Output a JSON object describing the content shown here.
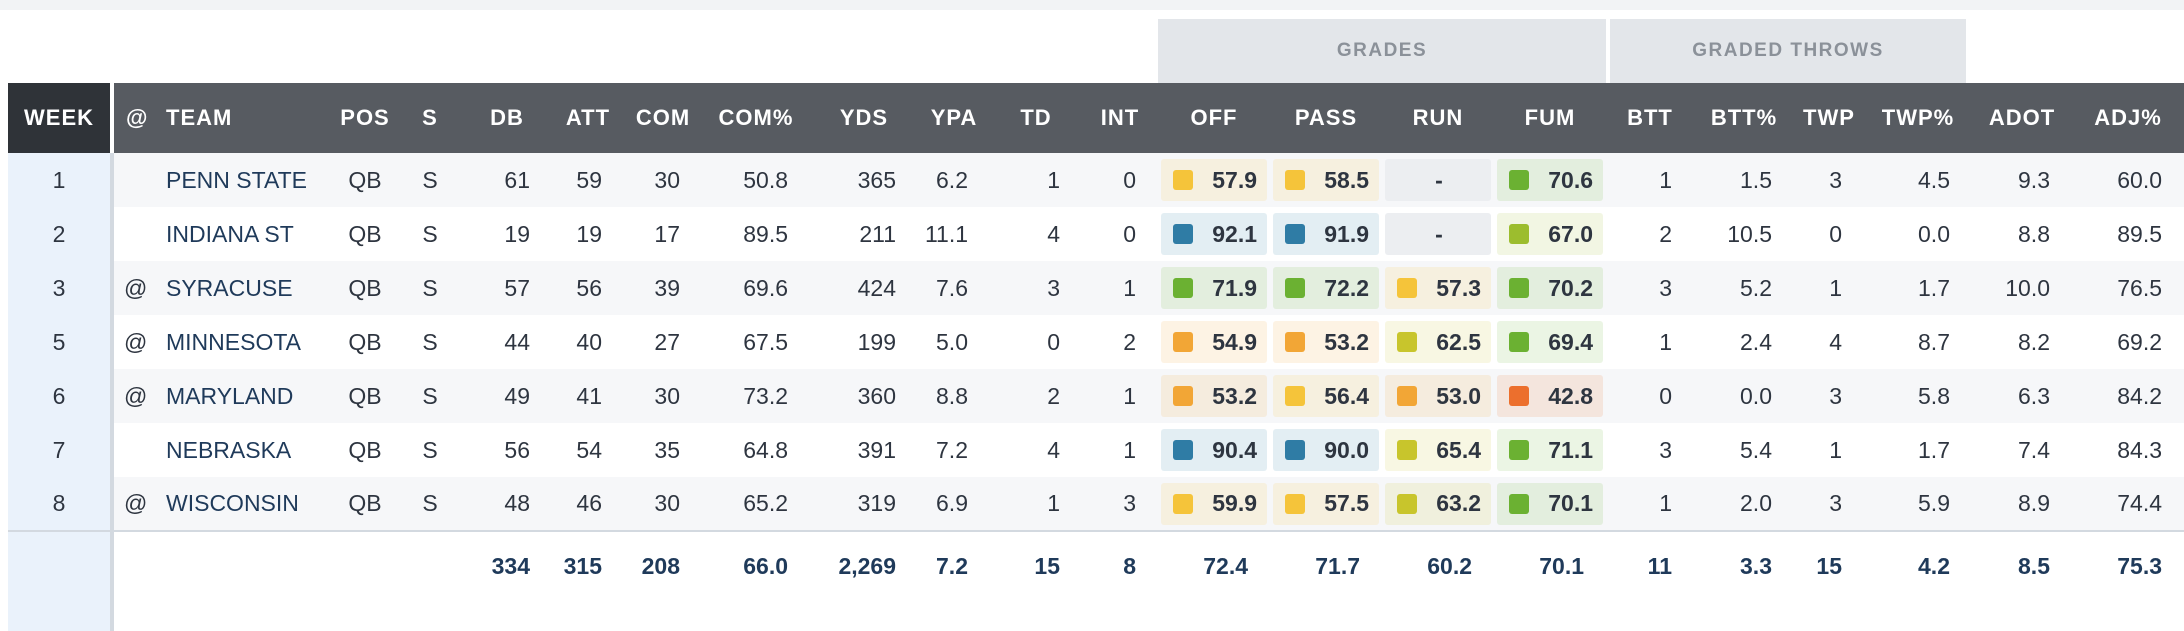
{
  "group_headers": {
    "grades": "GRADES",
    "graded_throws": "GRADED THROWS"
  },
  "columns": [
    "WEEK",
    "@",
    "TEAM",
    "POS",
    "S",
    "DB",
    "ATT",
    "COM",
    "COM%",
    "YDS",
    "YPA",
    "TD",
    "INT",
    "OFF",
    "PASS",
    "RUN",
    "FUM",
    "BTT",
    "BTT%",
    "TWP",
    "TWP%",
    "ADOT",
    "ADJ%"
  ],
  "grade_colors": {
    "blue": "#2f7ca5",
    "green": "#6bb132",
    "lime": "#9cbd2e",
    "olive": "#c8c52c",
    "yellow": "#f5c43a",
    "orange": "#f2a636",
    "red": "#ec6f2d"
  },
  "rows": [
    {
      "week": "1",
      "at": "",
      "team": "PENN STATE",
      "pos": "QB",
      "s": "S",
      "db": "61",
      "att": "59",
      "com": "30",
      "com_pct": "50.8",
      "yds": "365",
      "ypa": "6.2",
      "td": "1",
      "int": "0",
      "grades": [
        {
          "v": "57.9",
          "c": "#f5c43a"
        },
        {
          "v": "58.5",
          "c": "#f5c43a"
        },
        {
          "v": "-",
          "c": ""
        },
        {
          "v": "70.6",
          "c": "#6bb132"
        }
      ],
      "btt": "1",
      "btt_pct": "1.5",
      "twp": "3",
      "twp_pct": "4.5",
      "adot": "9.3",
      "adj_pct": "60.0"
    },
    {
      "week": "2",
      "at": "",
      "team": "INDIANA ST",
      "pos": "QB",
      "s": "S",
      "db": "19",
      "att": "19",
      "com": "17",
      "com_pct": "89.5",
      "yds": "211",
      "ypa": "11.1",
      "td": "4",
      "int": "0",
      "grades": [
        {
          "v": "92.1",
          "c": "#2f7ca5"
        },
        {
          "v": "91.9",
          "c": "#2f7ca5"
        },
        {
          "v": "-",
          "c": ""
        },
        {
          "v": "67.0",
          "c": "#9cbd2e"
        }
      ],
      "btt": "2",
      "btt_pct": "10.5",
      "twp": "0",
      "twp_pct": "0.0",
      "adot": "8.8",
      "adj_pct": "89.5"
    },
    {
      "week": "3",
      "at": "@",
      "team": "SYRACUSE",
      "pos": "QB",
      "s": "S",
      "db": "57",
      "att": "56",
      "com": "39",
      "com_pct": "69.6",
      "yds": "424",
      "ypa": "7.6",
      "td": "3",
      "int": "1",
      "grades": [
        {
          "v": "71.9",
          "c": "#6bb132"
        },
        {
          "v": "72.2",
          "c": "#6bb132"
        },
        {
          "v": "57.3",
          "c": "#f5c43a"
        },
        {
          "v": "70.2",
          "c": "#6bb132"
        }
      ],
      "btt": "3",
      "btt_pct": "5.2",
      "twp": "1",
      "twp_pct": "1.7",
      "adot": "10.0",
      "adj_pct": "76.5"
    },
    {
      "week": "5",
      "at": "@",
      "team": "MINNESOTA",
      "pos": "QB",
      "s": "S",
      "db": "44",
      "att": "40",
      "com": "27",
      "com_pct": "67.5",
      "yds": "199",
      "ypa": "5.0",
      "td": "0",
      "int": "2",
      "grades": [
        {
          "v": "54.9",
          "c": "#f2a636"
        },
        {
          "v": "53.2",
          "c": "#f2a636"
        },
        {
          "v": "62.5",
          "c": "#c8c52c"
        },
        {
          "v": "69.4",
          "c": "#6bb132"
        }
      ],
      "btt": "1",
      "btt_pct": "2.4",
      "twp": "4",
      "twp_pct": "8.7",
      "adot": "8.2",
      "adj_pct": "69.2"
    },
    {
      "week": "6",
      "at": "@",
      "team": "MARYLAND",
      "pos": "QB",
      "s": "S",
      "db": "49",
      "att": "41",
      "com": "30",
      "com_pct": "73.2",
      "yds": "360",
      "ypa": "8.8",
      "td": "2",
      "int": "1",
      "grades": [
        {
          "v": "53.2",
          "c": "#f2a636"
        },
        {
          "v": "56.4",
          "c": "#f5c43a"
        },
        {
          "v": "53.0",
          "c": "#f2a636"
        },
        {
          "v": "42.8",
          "c": "#ec6f2d"
        }
      ],
      "btt": "0",
      "btt_pct": "0.0",
      "twp": "3",
      "twp_pct": "5.8",
      "adot": "6.3",
      "adj_pct": "84.2"
    },
    {
      "week": "7",
      "at": "",
      "team": "NEBRASKA",
      "pos": "QB",
      "s": "S",
      "db": "56",
      "att": "54",
      "com": "35",
      "com_pct": "64.8",
      "yds": "391",
      "ypa": "7.2",
      "td": "4",
      "int": "1",
      "grades": [
        {
          "v": "90.4",
          "c": "#2f7ca5"
        },
        {
          "v": "90.0",
          "c": "#2f7ca5"
        },
        {
          "v": "65.4",
          "c": "#c8c52c"
        },
        {
          "v": "71.1",
          "c": "#6bb132"
        }
      ],
      "btt": "3",
      "btt_pct": "5.4",
      "twp": "1",
      "twp_pct": "1.7",
      "adot": "7.4",
      "adj_pct": "84.3"
    },
    {
      "week": "8",
      "at": "@",
      "team": "WISCONSIN",
      "pos": "QB",
      "s": "S",
      "db": "48",
      "att": "46",
      "com": "30",
      "com_pct": "65.2",
      "yds": "319",
      "ypa": "6.9",
      "td": "1",
      "int": "3",
      "grades": [
        {
          "v": "59.9",
          "c": "#f5c43a"
        },
        {
          "v": "57.5",
          "c": "#f5c43a"
        },
        {
          "v": "63.2",
          "c": "#c8c52c"
        },
        {
          "v": "70.1",
          "c": "#6bb132"
        }
      ],
      "btt": "1",
      "btt_pct": "2.0",
      "twp": "3",
      "twp_pct": "5.9",
      "adot": "8.9",
      "adj_pct": "74.4"
    }
  ],
  "totals": {
    "db": "334",
    "att": "315",
    "com": "208",
    "com_pct": "66.0",
    "yds": "2,269",
    "ypa": "7.2",
    "td": "15",
    "int": "8",
    "off": "72.4",
    "pass": "71.7",
    "run": "60.2",
    "fum": "70.1",
    "btt": "11",
    "btt_pct": "3.3",
    "twp": "15",
    "twp_pct": "4.2",
    "adot": "8.5",
    "adj_pct": "75.3"
  }
}
